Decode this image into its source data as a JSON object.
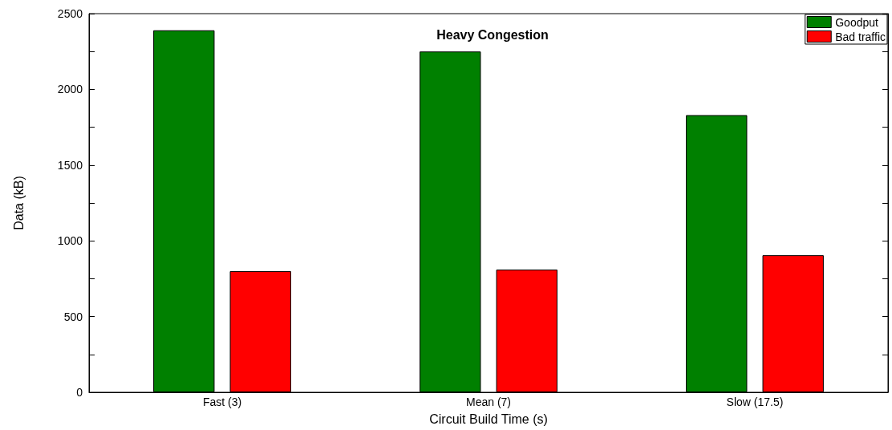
{
  "chart_data": {
    "type": "bar",
    "title": "Heavy Congestion",
    "xlabel": "Circuit Build Time (s)",
    "ylabel": "Data (kB)",
    "categories": [
      "Fast (3)",
      "Mean (7)",
      "Slow (17.5)"
    ],
    "series": [
      {
        "name": "Goodput",
        "color": "#008000",
        "values": [
          2390,
          2250,
          1830
        ]
      },
      {
        "name": "Bad traffic",
        "color": "#ff0000",
        "values": [
          800,
          810,
          905
        ]
      }
    ],
    "ylim": [
      0,
      2500
    ],
    "yticks": [
      0,
      {
        "value": 250,
        "label": null
      },
      500,
      {
        "value": 750,
        "label": null
      },
      1000,
      {
        "value": 1250,
        "label": null
      },
      1500,
      {
        "value": 1750,
        "label": null
      },
      2000,
      {
        "value": 2250,
        "label": null
      },
      2500
    ],
    "grid": false,
    "legend": "top right"
  }
}
